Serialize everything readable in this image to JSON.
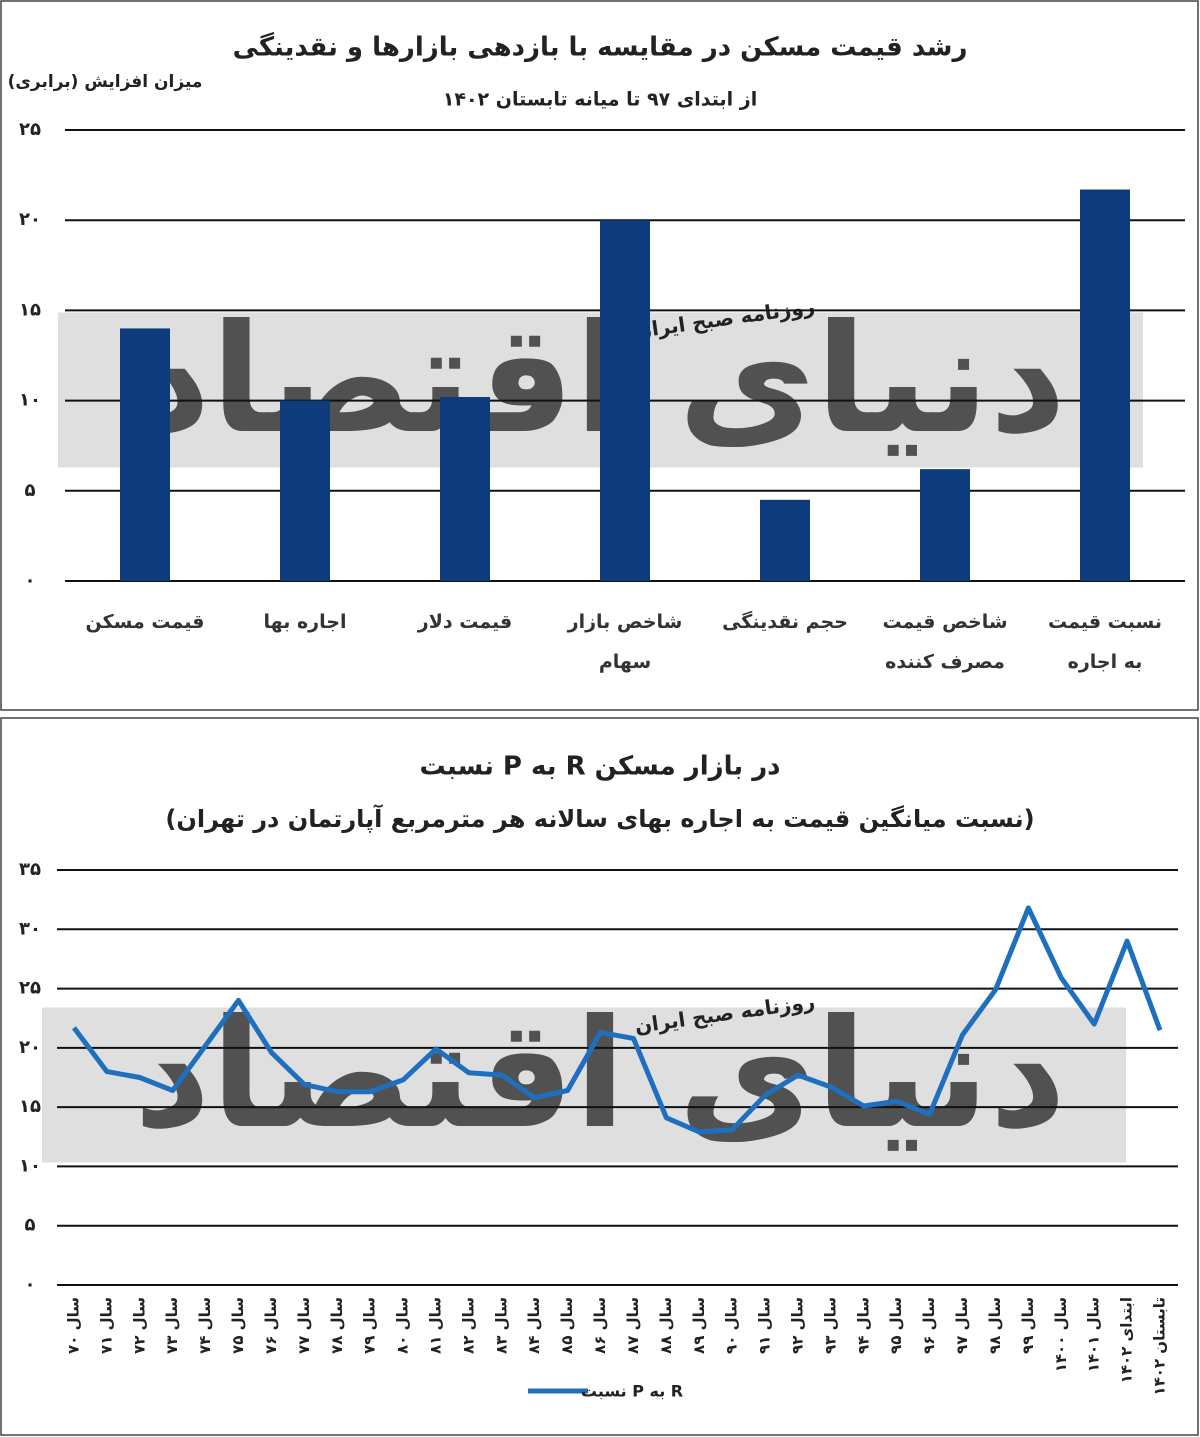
{
  "chart_data": [
    {
      "type": "bar",
      "title": "رشد قیمت مسکن در مقایسه با بازدهی بازارها و نقدینگی",
      "subtitle": "از ابتدای ۹۷ تا میانه تابستان ۱۴۰۲",
      "y_label": "میزان افزایش (برابری)",
      "watermark": "روزنامه صبح ایران",
      "watermark_logo": "دنیای اقتصاد",
      "categories": [
        "قیمت مسکن",
        "اجاره بها",
        "قیمت دلار",
        "شاخص بازار سهام",
        "حجم نقدینگی",
        "شاخص قیمت مصرف کننده",
        "نسبت قیمت به اجاره"
      ],
      "values": [
        14,
        10,
        10.2,
        20,
        4.5,
        6.2,
        21.7
      ],
      "color": "#0d3b7c",
      "ylim": [
        0,
        25
      ],
      "yticks": [
        {
          "value": 0,
          "label": "۰"
        },
        {
          "value": 5,
          "label": "۵"
        },
        {
          "value": 10,
          "label": "۱۰"
        },
        {
          "value": 15,
          "label": "۱۵"
        },
        {
          "value": 20,
          "label": "۲۰"
        },
        {
          "value": 25,
          "label": "۲۵"
        }
      ],
      "grid": true
    },
    {
      "type": "line",
      "title": "نسبت P به R در بازار مسکن",
      "subtitle": "(نسبت میانگین قیمت به اجاره بهای سالانه هر مترمربع آپارتمان در تهران)",
      "watermark": "روزنامه صبح ایران",
      "watermark_logo": "دنیای اقتصاد",
      "categories": [
        "سال ۷۰",
        "سال ۷۱",
        "سال ۷۲",
        "سال ۷۳",
        "سال ۷۴",
        "سال ۷۵",
        "سال ۷۶",
        "سال ۷۷",
        "سال ۷۸",
        "سال ۷۹",
        "سال ۸۰",
        "سال ۸۱",
        "سال ۸۲",
        "سال ۸۳",
        "سال ۸۴",
        "سال ۸۵",
        "سال ۸۶",
        "سال ۸۷",
        "سال ۸۸",
        "سال ۸۹",
        "سال ۹۰",
        "سال ۹۱",
        "سال ۹۲",
        "سال ۹۳",
        "سال ۹۴",
        "سال ۹۵",
        "سال ۹۶",
        "سال ۹۷",
        "سال ۹۸",
        "سال ۹۹",
        "سال ۱۴۰۰",
        "سال ۱۴۰۱",
        "ابتدای ۱۴۰۲",
        "تابستان ۱۴۰۲"
      ],
      "series": [
        {
          "name": "نسبت P به R",
          "color": "#1f6fbf",
          "values": [
            21.7,
            18.0,
            17.5,
            16.4,
            20.2,
            24.0,
            19.6,
            16.9,
            16.3,
            16.3,
            17.3,
            19.9,
            17.9,
            17.7,
            15.8,
            16.4,
            21.3,
            20.8,
            14.1,
            12.9,
            13.1,
            16.0,
            17.7,
            16.7,
            15.1,
            15.5,
            14.4,
            21.1,
            24.9,
            31.8,
            25.9,
            22.0,
            29.0,
            21.5
          ]
        }
      ],
      "ylim": [
        0,
        35
      ],
      "yticks": [
        {
          "value": 0,
          "label": "۰"
        },
        {
          "value": 5,
          "label": "۵"
        },
        {
          "value": 10,
          "label": "۱۰"
        },
        {
          "value": 15,
          "label": "۱۵"
        },
        {
          "value": 20,
          "label": "۲۰"
        },
        {
          "value": 25,
          "label": "۲۵"
        },
        {
          "value": 30,
          "label": "۳۰"
        },
        {
          "value": 35,
          "label": "۳۵"
        }
      ],
      "grid": true,
      "legend": "bottom"
    }
  ]
}
